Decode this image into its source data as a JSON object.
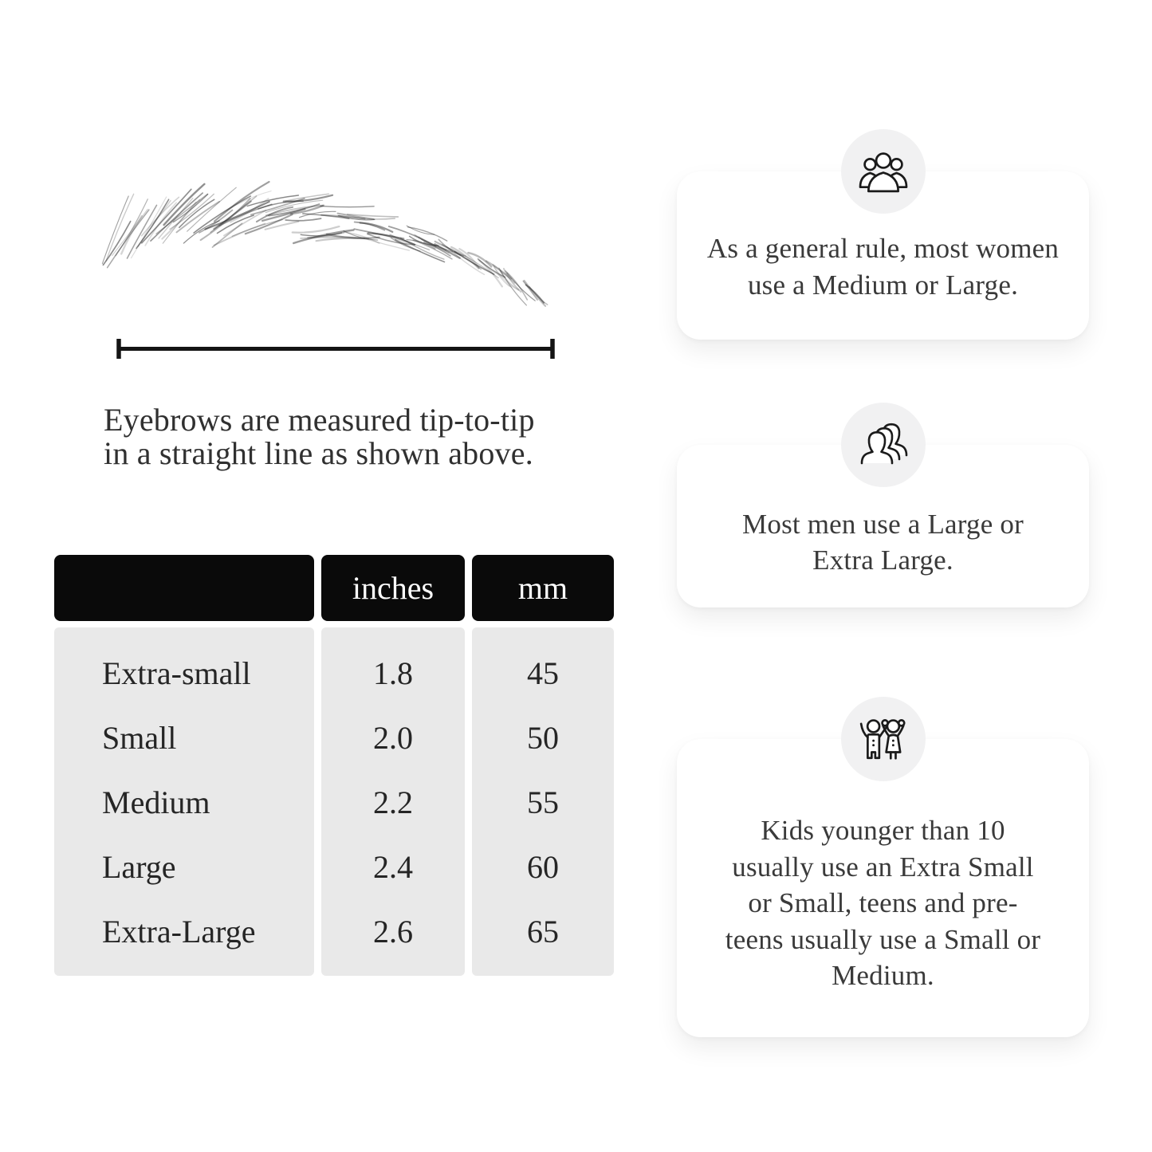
{
  "figure": {
    "caption_lines": [
      "Eyebrows are measured tip-to-tip",
      "in a straight line as shown above."
    ]
  },
  "size_table": {
    "headers": [
      "",
      "inches",
      "mm"
    ],
    "rows": [
      {
        "size": "Extra-small",
        "inches": "1.8",
        "mm": "45"
      },
      {
        "size": "Small",
        "inches": "2.0",
        "mm": "50"
      },
      {
        "size": "Medium",
        "inches": "2.2",
        "mm": "55"
      },
      {
        "size": "Large",
        "inches": "2.4",
        "mm": "60"
      },
      {
        "size": "Extra-Large",
        "inches": "2.6",
        "mm": "65"
      }
    ]
  },
  "cards": [
    {
      "icon": "women-group-icon",
      "text": "As a general rule, most women use a Medium or Large."
    },
    {
      "icon": "men-group-icon",
      "text": "Most men use a Large or Extra Large."
    },
    {
      "icon": "kids-icon",
      "text": "Kids younger than 10 usually use an Extra Small or Small, teens and pre-teens usually use a Small or Medium."
    }
  ],
  "colors": {
    "header_bg": "#0a0a0a",
    "header_text": "#ffffff",
    "table_body_bg": "#e9e9e9",
    "text": "#2f2f2f",
    "card_bg": "#ffffff",
    "icon_circle_bg": "#f1f1f2",
    "line": "#141414"
  },
  "chart_data": {
    "type": "table",
    "columns": [
      "",
      "inches",
      "mm"
    ],
    "rows": [
      [
        "Extra-small",
        1.8,
        45
      ],
      [
        "Small",
        2.0,
        50
      ],
      [
        "Medium",
        2.2,
        55
      ],
      [
        "Large",
        2.4,
        60
      ],
      [
        "Extra-Large",
        2.6,
        65
      ]
    ],
    "annotations": [
      "Eyebrows are measured tip-to-tip in a straight line as shown above.",
      "As a general rule, most women use a Medium or Large.",
      "Most men use a Large or Extra Large.",
      "Kids younger than 10 usually use an Extra Small or Small, teens and pre-teens usually use a Small or Medium."
    ]
  }
}
